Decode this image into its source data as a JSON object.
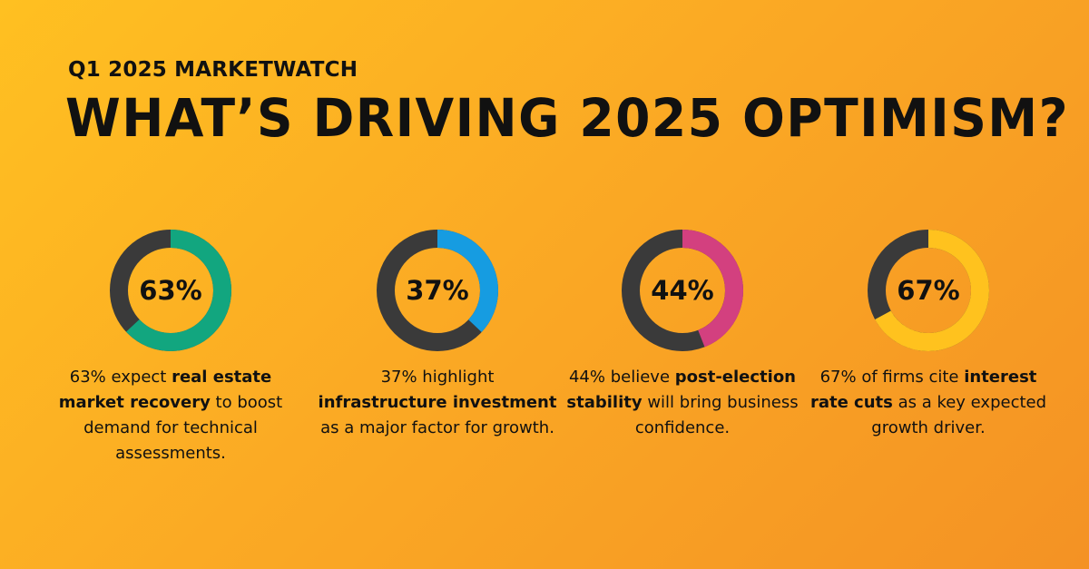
{
  "header": {
    "eyebrow": "Q1 2025 MARKETWATCH",
    "title": "WHAT’S DRIVING 2025 OPTIMISM?"
  },
  "track_color": "#3A3A3A",
  "chart_data": [
    {
      "type": "pie",
      "variant": "donut",
      "value_percent": 63,
      "label": "63%",
      "color": "#12A67F",
      "description": [
        {
          "text": "63% expect ",
          "bold": false
        },
        {
          "text": "real estate market recovery",
          "bold": true
        },
        {
          "text": " to boost demand for technical assessments.",
          "bold": false
        }
      ]
    },
    {
      "type": "pie",
      "variant": "donut",
      "value_percent": 37,
      "label": "37%",
      "color": "#169CE1",
      "description": [
        {
          "text": "37% highlight ",
          "bold": false
        },
        {
          "text": "infrastructure investment",
          "bold": true
        },
        {
          "text": " as a major factor for growth.",
          "bold": false
        }
      ]
    },
    {
      "type": "pie",
      "variant": "donut",
      "value_percent": 44,
      "label": "44%",
      "color": "#D3407F",
      "description": [
        {
          "text": "44% believe ",
          "bold": false
        },
        {
          "text": "post-election stability",
          "bold": true
        },
        {
          "text": " will bring business confidence.",
          "bold": false
        }
      ]
    },
    {
      "type": "pie",
      "variant": "donut",
      "value_percent": 67,
      "label": "67%",
      "color": "#FFC21E",
      "description": [
        {
          "text": "67% of firms cite ",
          "bold": false
        },
        {
          "text": "interest rate cuts",
          "bold": true
        },
        {
          "text": " as a key expected growth driver.",
          "bold": false
        }
      ]
    }
  ]
}
